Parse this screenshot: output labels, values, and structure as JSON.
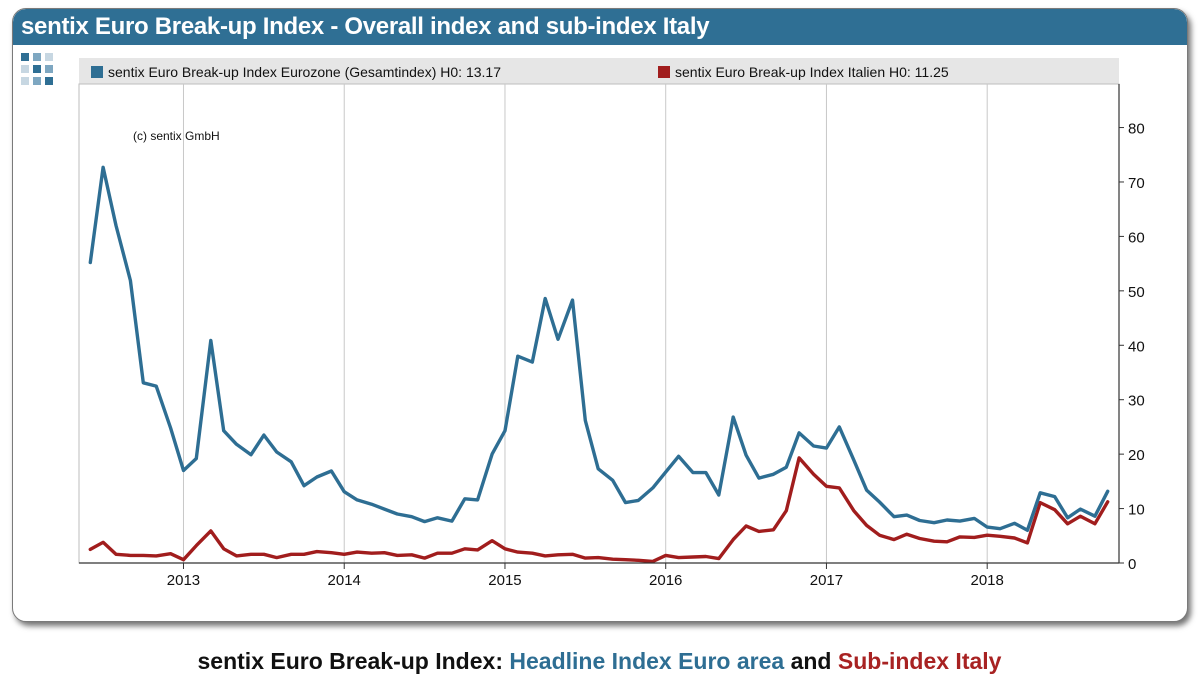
{
  "header": {
    "title": "sentix Euro Break-up Index - Overall index and sub-index Italy"
  },
  "caption": {
    "part1": "sentix Euro Break-up Index: ",
    "part2": "Headline Index Euro area",
    "part3": " and ",
    "part4": "Sub-index Italy"
  },
  "chart_data": {
    "type": "line",
    "title": "sentix Euro Break-up Index - Overall index and sub-index Italy",
    "annotation": "(c) sentix GmbH",
    "y_axis_side": "right",
    "ylim": [
      0,
      88
    ],
    "yticks": [
      0,
      10,
      20,
      30,
      40,
      50,
      60,
      70,
      80
    ],
    "xlim": [
      2012.35,
      2018.82
    ],
    "xticks": [
      2013,
      2014,
      2015,
      2016,
      2017,
      2018
    ],
    "xtick_labels": [
      "2013",
      "2014",
      "2015",
      "2016",
      "2017",
      "2018"
    ],
    "grid": "vertical at year boundaries",
    "legend_position": "top",
    "colors": {
      "eurozone": "#2e6e93",
      "italy": "#a11d1d"
    },
    "x": [
      2012.42,
      2012.5,
      2012.58,
      2012.67,
      2012.75,
      2012.83,
      2012.92,
      2013.0,
      2013.08,
      2013.17,
      2013.25,
      2013.33,
      2013.42,
      2013.5,
      2013.58,
      2013.67,
      2013.75,
      2013.83,
      2013.92,
      2014.0,
      2014.08,
      2014.17,
      2014.25,
      2014.33,
      2014.42,
      2014.5,
      2014.58,
      2014.67,
      2014.75,
      2014.83,
      2014.92,
      2015.0,
      2015.08,
      2015.17,
      2015.25,
      2015.33,
      2015.42,
      2015.5,
      2015.58,
      2015.67,
      2015.75,
      2015.83,
      2015.92,
      2016.0,
      2016.08,
      2016.17,
      2016.25,
      2016.33,
      2016.42,
      2016.5,
      2016.58,
      2016.67,
      2016.75,
      2016.83,
      2016.92,
      2017.0,
      2017.08,
      2017.17,
      2017.25,
      2017.33,
      2017.42,
      2017.5,
      2017.58,
      2017.67,
      2017.75,
      2017.83,
      2017.92,
      2018.0,
      2018.08,
      2018.17,
      2018.25,
      2018.33,
      2018.42,
      2018.5,
      2018.58,
      2018.67,
      2018.75
    ],
    "series": [
      {
        "name": "sentix Euro Break-up Index Eurozone (Gesamtindex) H0: 13.17",
        "values": [
          55.2,
          72.7,
          62.0,
          51.9,
          33.1,
          32.5,
          24.8,
          17.0,
          19.2,
          40.9,
          24.3,
          21.8,
          19.9,
          23.5,
          20.4,
          18.6,
          14.2,
          15.8,
          16.9,
          13.1,
          11.6,
          10.8,
          9.9,
          9.0,
          8.5,
          7.6,
          8.3,
          7.7,
          11.8,
          11.6,
          20.0,
          24.3,
          38.0,
          36.9,
          48.6,
          41.1,
          48.3,
          26.2,
          17.3,
          15.2,
          11.1,
          11.5,
          13.8,
          16.7,
          19.6,
          16.6,
          16.6,
          12.5,
          26.8,
          19.8,
          15.6,
          16.3,
          17.6,
          23.9,
          21.5,
          21.1,
          25.0,
          18.9,
          13.4,
          11.2,
          8.5,
          8.8,
          7.8,
          7.4,
          7.9,
          7.7,
          8.2,
          6.6,
          6.3,
          7.3,
          6.0,
          12.9,
          12.2,
          8.3,
          9.9,
          8.6,
          13.17
        ]
      },
      {
        "name": "sentix Euro Break-up Index Italien H0: 11.25",
        "values": [
          2.5,
          3.8,
          1.6,
          1.4,
          1.4,
          1.3,
          1.7,
          0.6,
          3.2,
          5.9,
          2.6,
          1.3,
          1.6,
          1.6,
          1.0,
          1.6,
          1.6,
          2.1,
          1.9,
          1.6,
          2.0,
          1.8,
          1.9,
          1.4,
          1.5,
          0.9,
          1.8,
          1.8,
          2.6,
          2.4,
          4.1,
          2.6,
          2.0,
          1.8,
          1.3,
          1.5,
          1.6,
          0.9,
          1.0,
          0.7,
          0.6,
          0.5,
          0.3,
          1.4,
          1.0,
          1.1,
          1.2,
          0.8,
          4.3,
          6.8,
          5.8,
          6.1,
          9.6,
          19.3,
          16.3,
          14.1,
          13.8,
          9.6,
          6.9,
          5.1,
          4.3,
          5.3,
          4.5,
          4.0,
          3.9,
          4.8,
          4.7,
          5.1,
          4.9,
          4.6,
          3.7,
          11.1,
          9.8,
          7.2,
          8.6,
          7.2,
          11.25
        ]
      }
    ]
  }
}
